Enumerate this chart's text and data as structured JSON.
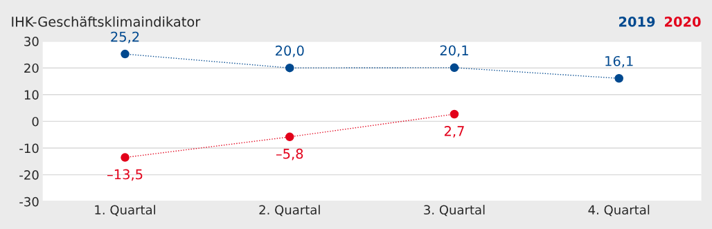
{
  "chart_data": {
    "type": "line",
    "title": "IHK-Geschäftsklimaindikator",
    "categories": [
      "1. Quartal",
      "2. Quartal",
      "3. Quartal",
      "4. Quartal"
    ],
    "series": [
      {
        "name": "2019",
        "color": "#00498f",
        "values": [
          25.2,
          20.0,
          20.1,
          16.1
        ],
        "value_labels": [
          "25,2",
          "20,0",
          "20,1",
          "16,1"
        ]
      },
      {
        "name": "2020",
        "color": "#e2001a",
        "values": [
          -13.5,
          -5.8,
          2.7,
          null
        ],
        "value_labels": [
          "–13,5",
          "–5,8",
          "2,7",
          null
        ]
      }
    ],
    "ylim": [
      -30,
      30
    ],
    "yticks": [
      {
        "value": -30,
        "label": "-30"
      },
      {
        "value": -20,
        "label": "-20"
      },
      {
        "value": -10,
        "label": "-10"
      },
      0,
      10,
      20,
      30
    ],
    "grid": "y",
    "legend": "top right",
    "marker": "circle",
    "line_style": "dotted"
  }
}
